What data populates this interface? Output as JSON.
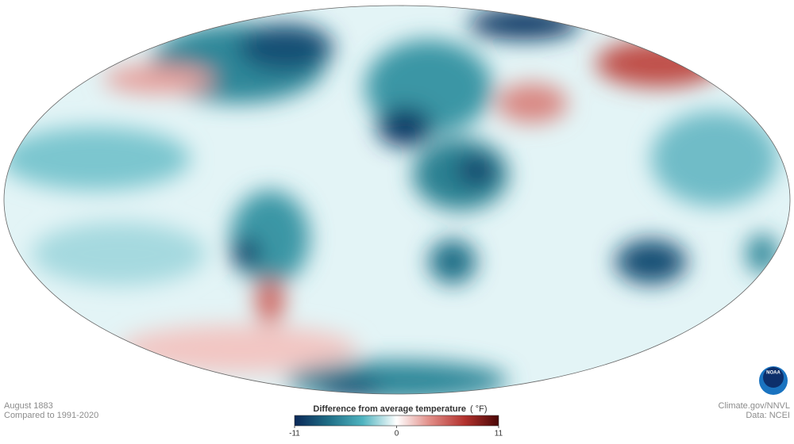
{
  "map": {
    "date": "August 1883",
    "baseline": "Compared to 1991-2020",
    "credit": "Climate.gov/NNVL",
    "source": "Data: NCEI",
    "logo": "NOAA"
  },
  "colorbar": {
    "title": "Difference from average temperature",
    "unit": "( °F)",
    "min": -11,
    "max": 11,
    "ticks": [
      -11,
      0,
      11
    ],
    "colors": [
      "#0b2858",
      "#1f6e86",
      "#4fb3bf",
      "#ffffff",
      "#e08a84",
      "#b3322e",
      "#4a0606"
    ]
  }
}
